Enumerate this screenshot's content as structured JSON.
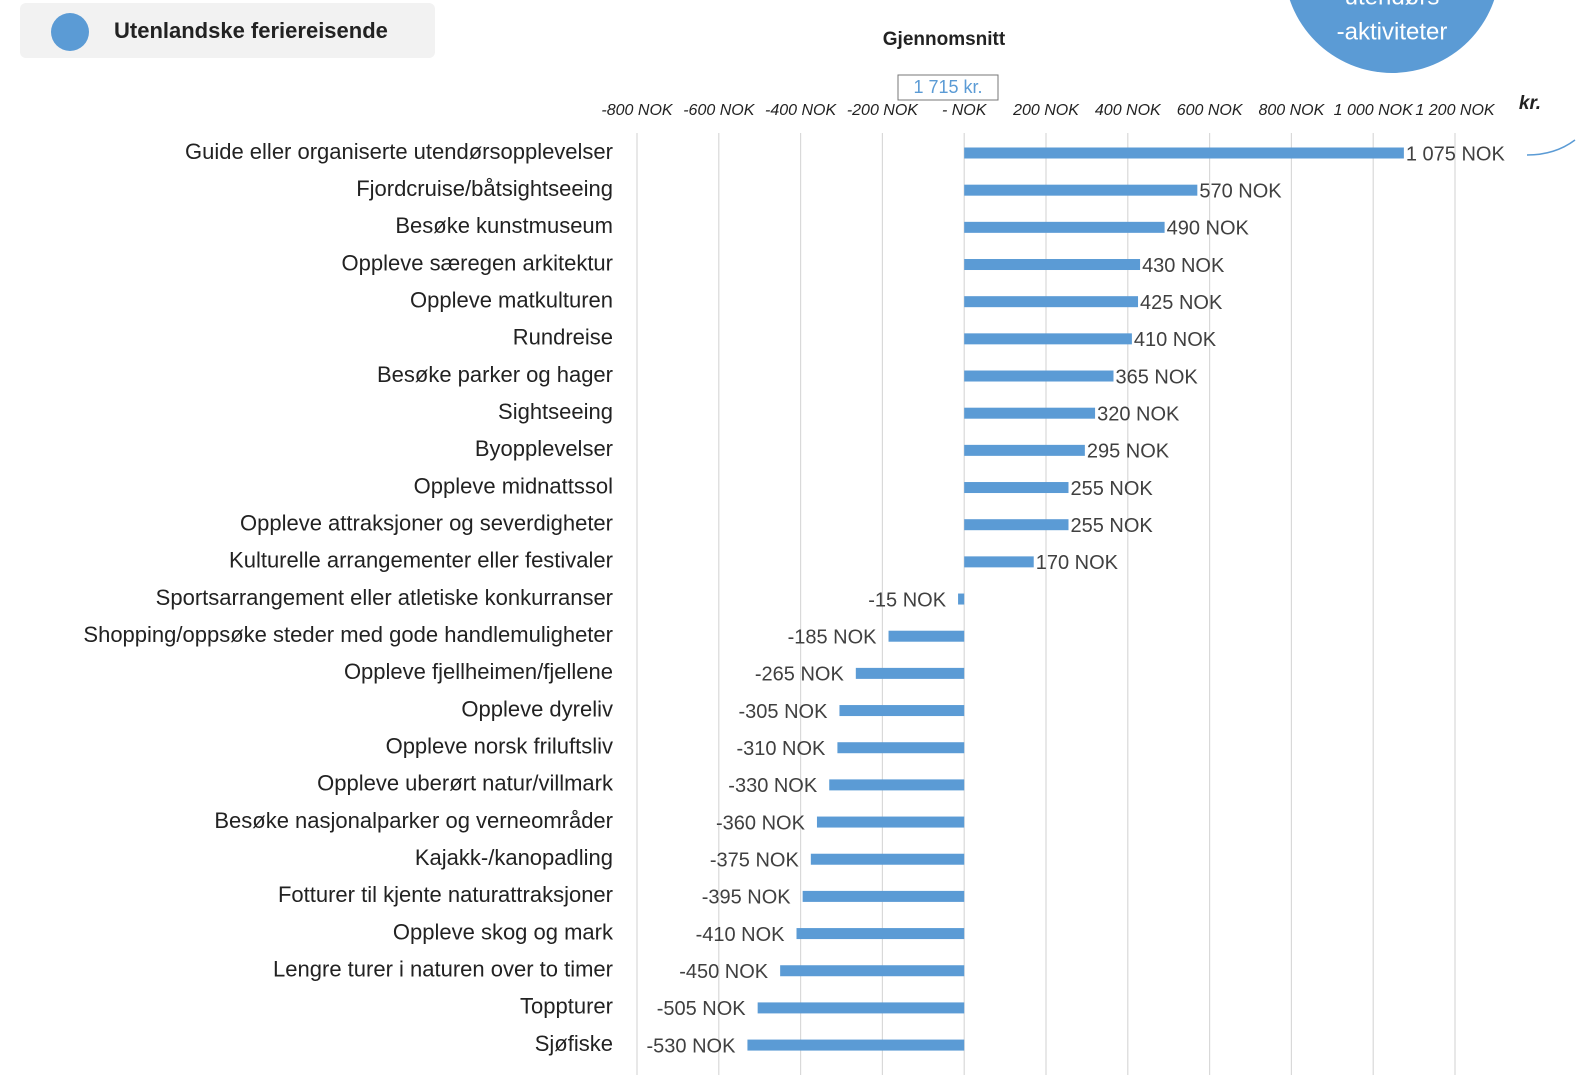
{
  "chart_data": {
    "type": "bar",
    "orientation": "horizontal",
    "title": "Gjennomsnitt",
    "average_label": "1 715 kr.",
    "unit_label": "kr.",
    "badge": [
      "utendørs",
      "-aktiviteter"
    ],
    "categories": [
      "Guide eller organiserte utendørsopplevelser",
      "Fjordcruise/båtsightseeing",
      "Besøke kunstmuseum",
      "Oppleve særegen arkitektur",
      "Oppleve matkulturen",
      "Rundreise",
      "Besøke parker og hager",
      "Sightseeing",
      "Byopplevelser",
      "Oppleve midnattssol",
      "Oppleve attraksjoner og severdigheter",
      "Kulturelle arrangementer eller festivaler",
      "Sportsarrangement eller atletiske konkurranser",
      "Shopping/oppsøke steder med gode handlemuligheter",
      "Oppleve fjellheimen/fjellene",
      "Oppleve dyreliv",
      "Oppleve norsk friluftsliv",
      "Oppleve uberørt natur/villmark",
      "Besøke nasjonalparker og verneområder",
      "Kajakk-/kanopadling",
      "Fotturer til kjente naturattraksjoner",
      "Oppleve skog og mark",
      "Lengre turer i naturen over to timer",
      "Toppturer",
      "Sjøfiske"
    ],
    "series": [
      {
        "name": "Utenlandske feriereisende",
        "color": "#5b9bd5",
        "values": [
          1075,
          570,
          490,
          430,
          425,
          410,
          365,
          320,
          295,
          255,
          255,
          170,
          -15,
          -185,
          -265,
          -305,
          -310,
          -330,
          -360,
          -375,
          -395,
          -410,
          -450,
          -505,
          -530
        ],
        "value_labels": [
          "1 075 NOK",
          "570 NOK",
          "490 NOK",
          "430 NOK",
          "425 NOK",
          "410 NOK",
          "365 NOK",
          "320 NOK",
          "295 NOK",
          "255 NOK",
          "255 NOK",
          "170 NOK",
          "-15 NOK",
          "-185 NOK",
          "-265 NOK",
          "-305 NOK",
          "-310 NOK",
          "-330 NOK",
          "-360 NOK",
          "-375 NOK",
          "-395 NOK",
          "-410 NOK",
          "-450 NOK",
          "-505 NOK",
          "-530 NOK"
        ]
      }
    ],
    "xlim": [
      -800,
      1200
    ],
    "xticks": [
      {
        "value": -800,
        "label": "-800 NOK"
      },
      {
        "value": -600,
        "label": "-600 NOK"
      },
      {
        "value": -400,
        "label": "-400 NOK"
      },
      {
        "value": -200,
        "label": "-200 NOK"
      },
      {
        "value": 0,
        "label": "- NOK"
      },
      {
        "value": 200,
        "label": "200 NOK"
      },
      {
        "value": 400,
        "label": "400 NOK"
      },
      {
        "value": 600,
        "label": "600 NOK"
      },
      {
        "value": 800,
        "label": "800 NOK"
      },
      {
        "value": 1000,
        "label": "1 000 NOK"
      },
      {
        "value": 1200,
        "label": "1 200 NOK"
      }
    ],
    "grid": true
  }
}
